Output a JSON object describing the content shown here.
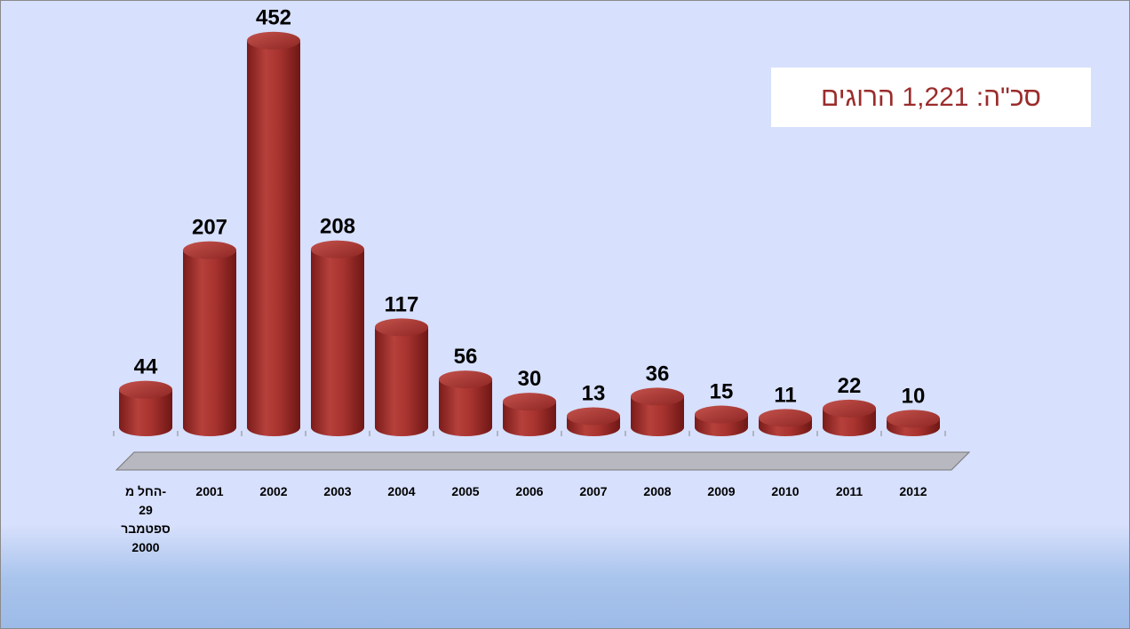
{
  "chart_data": {
    "type": "bar",
    "categories": [
      "החל מ-\n29\nספטמבר\n2000",
      "2001",
      "2002",
      "2003",
      "2004",
      "2005",
      "2006",
      "2007",
      "2008",
      "2009",
      "2010",
      "2011",
      "2012"
    ],
    "values": [
      44,
      207,
      452,
      208,
      117,
      56,
      30,
      13,
      36,
      15,
      11,
      22,
      10
    ],
    "color": "#a8332f",
    "ylim": [
      0,
      460
    ],
    "annotation": "סכ\"ה: 1,221 הרוגים"
  }
}
